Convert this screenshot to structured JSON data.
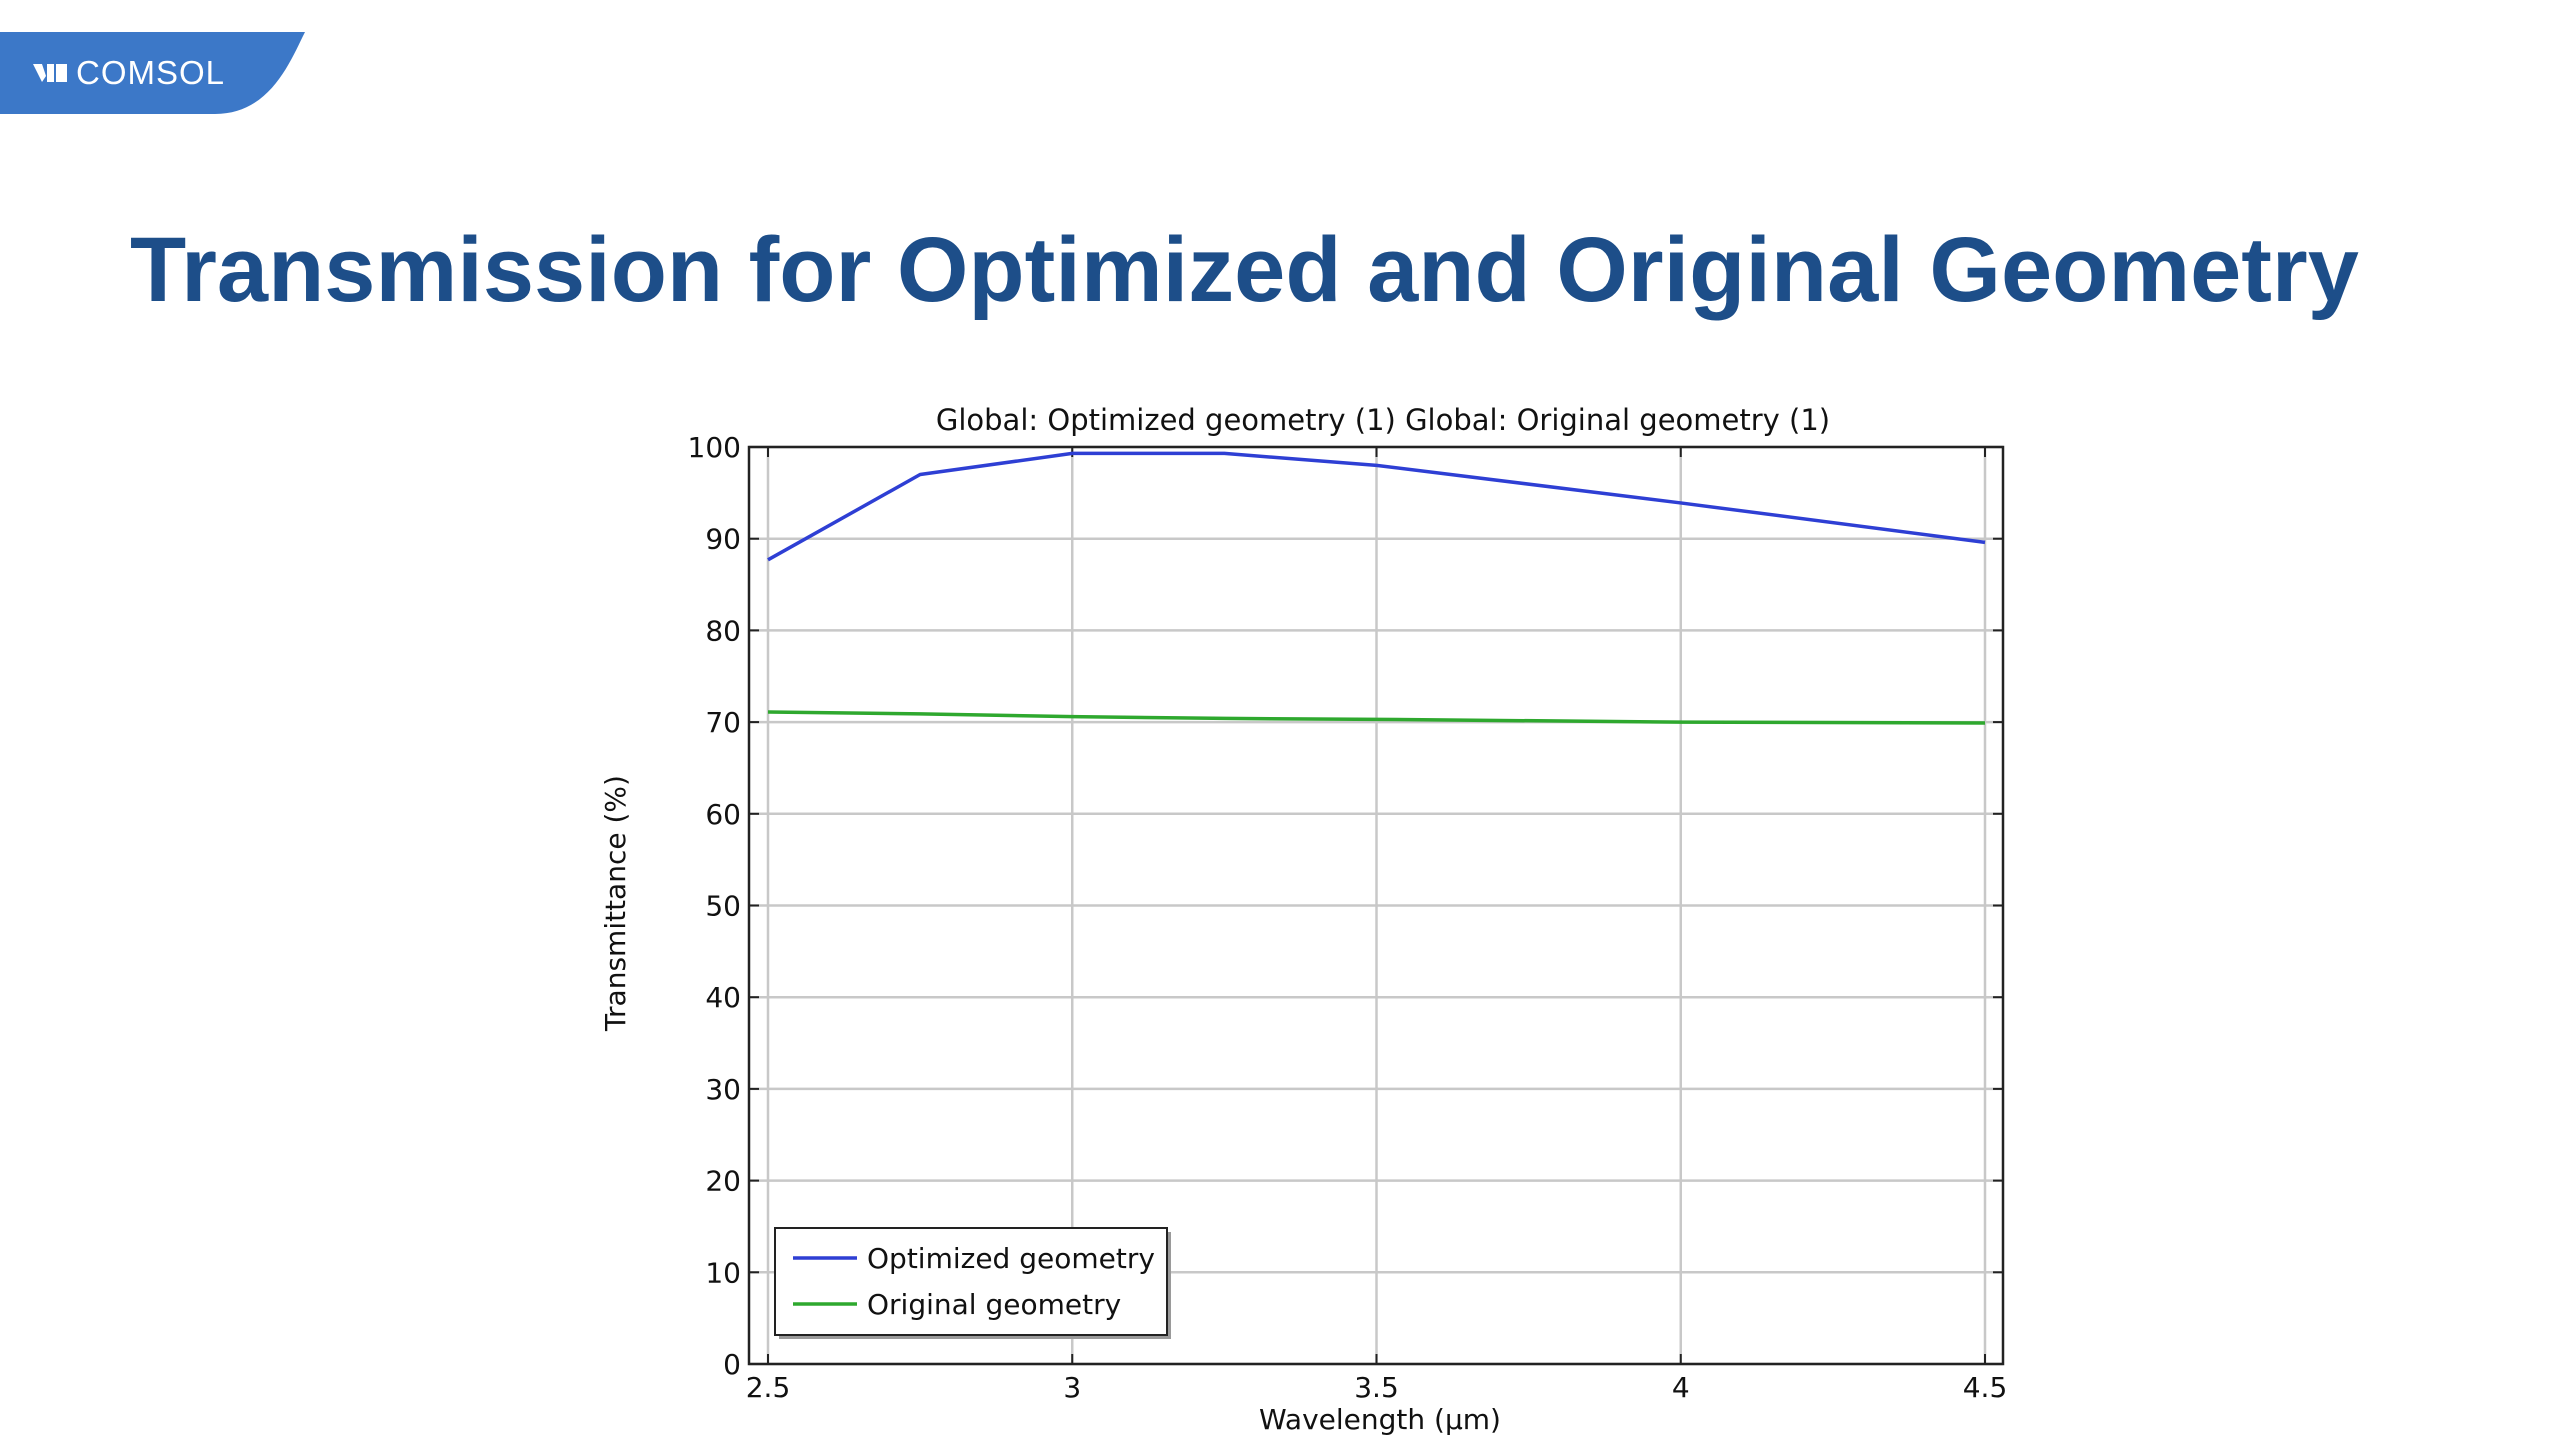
{
  "brand": {
    "logo_text": "COMSOL",
    "tab_color": "#3c78c8"
  },
  "slide": {
    "title": "Transmission for Optimized and Original Geometry"
  },
  "chart_data": {
    "type": "line",
    "title": "Global: Optimized geometry (1)  Global: Original geometry (1)",
    "xlabel": "Wavelength (µm)",
    "ylabel": "Transmittance (%)",
    "xlim": [
      2.5,
      4.5
    ],
    "ylim": [
      0,
      100
    ],
    "xticks": [
      2.5,
      3,
      3.5,
      4,
      4.5
    ],
    "xtick_labels": [
      "2.5",
      "3",
      "3.5",
      "4",
      "4.5"
    ],
    "yticks": [
      0,
      10,
      20,
      30,
      40,
      50,
      60,
      70,
      80,
      90,
      100
    ],
    "ytick_labels": [
      "0",
      "10",
      "20",
      "30",
      "40",
      "50",
      "60",
      "70",
      "80",
      "90",
      "100"
    ],
    "grid": true,
    "legend_position": "bottom-left",
    "series": [
      {
        "name": "Optimized geometry",
        "color": "#2e3fd4",
        "x": [
          2.5,
          2.75,
          3.0,
          3.25,
          3.5,
          4.0,
          4.5
        ],
        "y": [
          87.7,
          97.0,
          99.3,
          99.3,
          98.0,
          93.9,
          89.6
        ]
      },
      {
        "name": "Original geometry",
        "color": "#2ea82e",
        "x": [
          2.5,
          2.75,
          3.0,
          3.25,
          3.5,
          4.0,
          4.5
        ],
        "y": [
          71.1,
          70.9,
          70.6,
          70.4,
          70.3,
          70.0,
          69.9
        ]
      }
    ]
  }
}
